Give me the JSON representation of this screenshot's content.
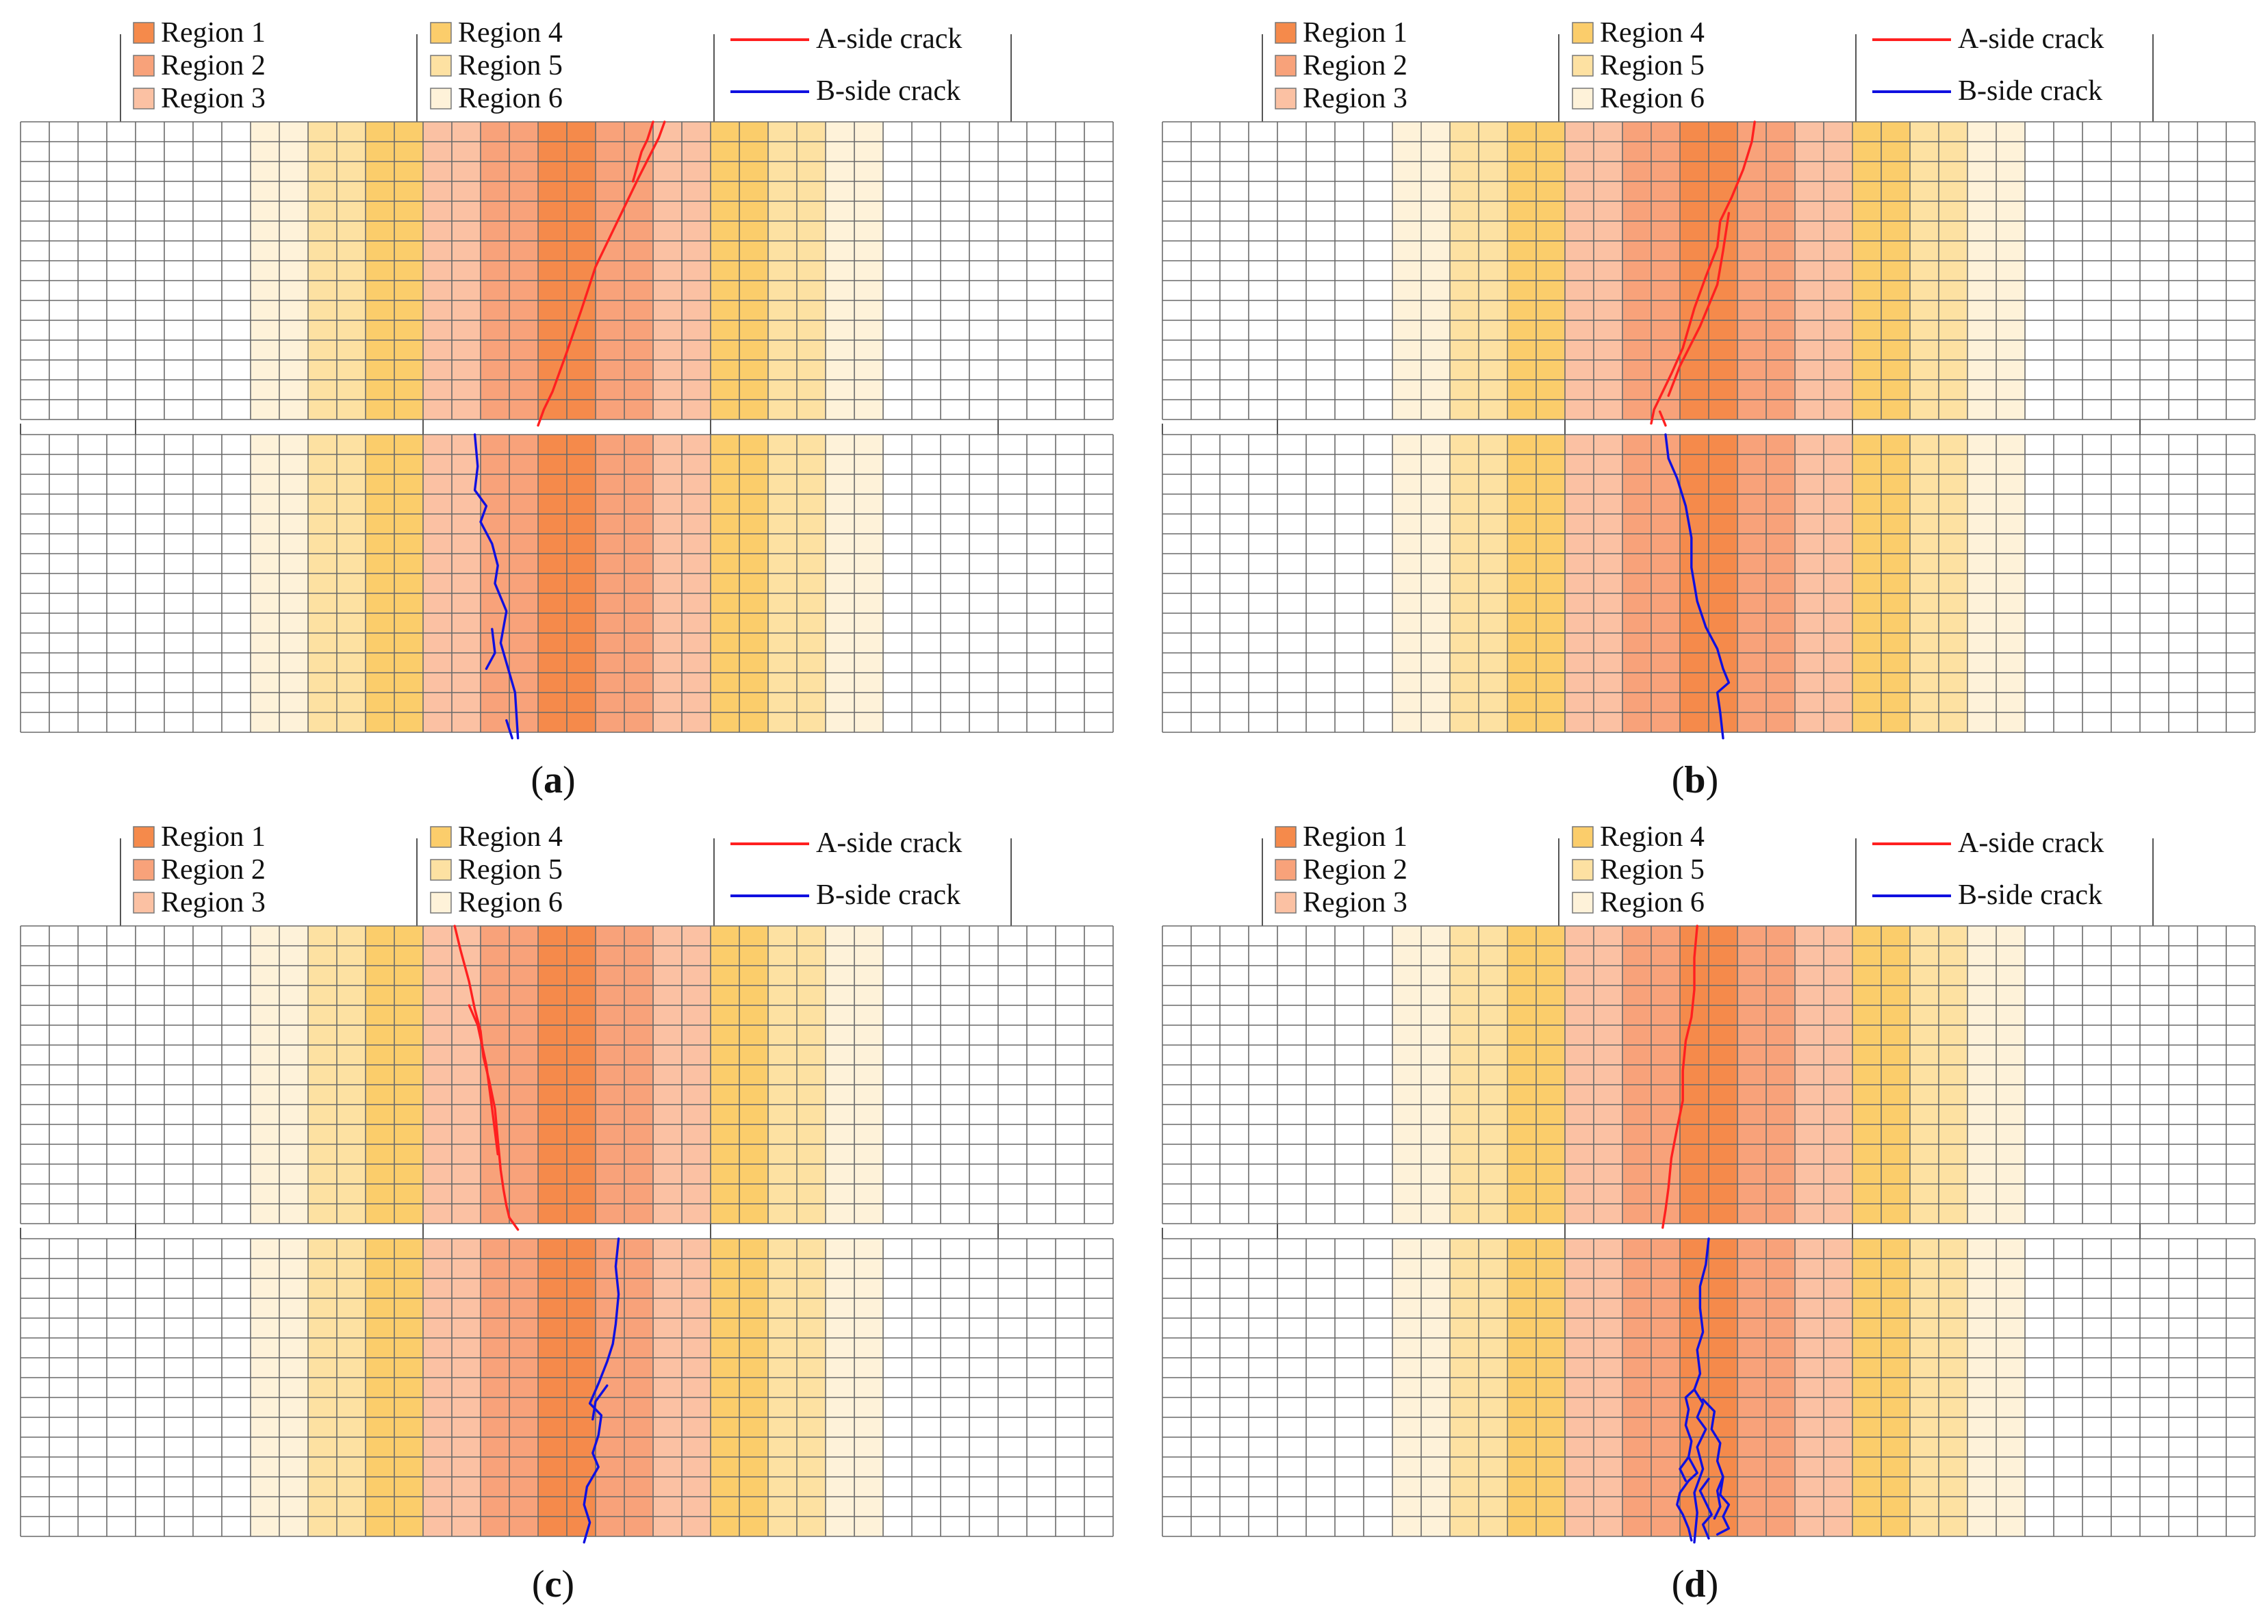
{
  "figure": {
    "region_colors": [
      "#f58a4b",
      "#f8a27a",
      "#fbc1a3",
      "#fbcd6b",
      "#fde1a2",
      "#fef2d9"
    ],
    "column_regions": [
      0,
      0,
      0,
      0,
      0,
      0,
      0,
      0,
      6,
      6,
      5,
      5,
      4,
      4,
      3,
      3,
      2,
      2,
      1,
      1,
      2,
      2,
      3,
      3,
      4,
      4,
      5,
      5,
      6,
      6,
      0,
      0,
      0,
      0,
      0,
      0,
      0,
      0
    ],
    "legend": {
      "regions": [
        "Region 1",
        "Region 2",
        "Region 3",
        "Region 4",
        "Region 5",
        "Region 6"
      ],
      "a_side": "A-side crack",
      "b_side": "B-side crack"
    },
    "crack_colors": {
      "a_side": "#ff2020",
      "b_side": "#1010e0"
    },
    "panels": [
      {
        "label_open": "(",
        "label_letter": "a",
        "label_close": ")",
        "a_crack": [
          [
            [
              22.4,
              0
            ],
            [
              22.2,
              0.8
            ],
            [
              21.5,
              2.8
            ],
            [
              20.7,
              5.2
            ],
            [
              20.0,
              7.3
            ],
            [
              19.5,
              9.5
            ],
            [
              19.0,
              11.6
            ],
            [
              18.5,
              13.6
            ],
            [
              18.2,
              14.5
            ],
            [
              18.0,
              15.3
            ]
          ],
          [
            [
              22.0,
              0
            ],
            [
              21.8,
              0.9
            ],
            [
              21.6,
              1.5
            ],
            [
              21.3,
              3.0
            ]
          ]
        ],
        "b_crack": [
          [
            [
              15.8,
              0
            ],
            [
              15.9,
              1.6
            ],
            [
              15.8,
              2.8
            ],
            [
              16.2,
              3.6
            ],
            [
              16.0,
              4.4
            ],
            [
              16.4,
              5.5
            ],
            [
              16.6,
              6.6
            ],
            [
              16.5,
              7.5
            ],
            [
              16.9,
              8.9
            ],
            [
              16.7,
              10.5
            ],
            [
              16.9,
              11.5
            ],
            [
              17.2,
              13.0
            ],
            [
              17.3,
              15.3
            ]
          ],
          [
            [
              16.4,
              9.8
            ],
            [
              16.5,
              11.0
            ],
            [
              16.2,
              11.8
            ]
          ],
          [
            [
              16.9,
              14.4
            ],
            [
              17.1,
              15.3
            ]
          ]
        ]
      },
      {
        "label_open": "(",
        "label_letter": "b",
        "label_close": ")",
        "a_crack": [
          [
            [
              20.6,
              0
            ],
            [
              20.5,
              1.0
            ],
            [
              20.2,
              2.4
            ],
            [
              19.8,
              3.8
            ],
            [
              19.4,
              5.0
            ],
            [
              19.3,
              6.3
            ],
            [
              18.9,
              7.8
            ],
            [
              18.5,
              9.4
            ],
            [
              18.1,
              11.4
            ],
            [
              17.7,
              12.7
            ],
            [
              17.4,
              13.6
            ],
            [
              17.1,
              14.5
            ],
            [
              17.0,
              15.2
            ]
          ],
          [
            [
              19.7,
              4.6
            ],
            [
              19.5,
              6.5
            ],
            [
              19.3,
              8.2
            ],
            [
              18.7,
              10.3
            ],
            [
              18.0,
              12.3
            ],
            [
              17.6,
              13.8
            ]
          ],
          [
            [
              17.3,
              14.6
            ],
            [
              17.5,
              15.3
            ]
          ]
        ],
        "b_crack": [
          [
            [
              17.5,
              0
            ],
            [
              17.6,
              1.2
            ],
            [
              17.9,
              2.2
            ],
            [
              18.2,
              3.6
            ],
            [
              18.4,
              5.2
            ],
            [
              18.4,
              6.7
            ],
            [
              18.6,
              8.4
            ],
            [
              18.9,
              9.7
            ],
            [
              19.3,
              10.8
            ],
            [
              19.5,
              11.8
            ],
            [
              19.7,
              12.5
            ],
            [
              19.3,
              13.0
            ],
            [
              19.4,
              14.0
            ],
            [
              19.5,
              15.3
            ]
          ]
        ]
      },
      {
        "label_open": "(",
        "label_letter": "c",
        "label_close": ")",
        "a_crack": [
          [
            [
              15.1,
              0
            ],
            [
              15.3,
              1.2
            ],
            [
              15.6,
              2.8
            ],
            [
              15.8,
              4.2
            ],
            [
              16.0,
              5.3
            ],
            [
              16.1,
              6.6
            ],
            [
              16.3,
              7.8
            ],
            [
              16.5,
              9.2
            ],
            [
              16.6,
              10.8
            ],
            [
              16.7,
              12.3
            ],
            [
              16.8,
              13.3
            ],
            [
              16.9,
              14.1
            ],
            [
              17.0,
              14.7
            ],
            [
              17.3,
              15.3
            ]
          ],
          [
            [
              15.6,
              4.0
            ],
            [
              15.9,
              5.0
            ],
            [
              16.2,
              7.0
            ],
            [
              16.4,
              9.2
            ],
            [
              16.6,
              11.5
            ]
          ]
        ],
        "b_crack": [
          [
            [
              20.8,
              0
            ],
            [
              20.7,
              1.4
            ],
            [
              20.8,
              2.8
            ],
            [
              20.7,
              4.3
            ],
            [
              20.6,
              5.3
            ],
            [
              20.4,
              6.2
            ],
            [
              20.1,
              7.3
            ],
            [
              19.8,
              8.3
            ],
            [
              20.2,
              8.9
            ],
            [
              20.1,
              9.9
            ],
            [
              19.9,
              10.8
            ],
            [
              20.1,
              11.5
            ],
            [
              19.7,
              12.5
            ],
            [
              19.6,
              13.4
            ],
            [
              19.8,
              14.3
            ],
            [
              19.6,
              15.3
            ]
          ],
          [
            [
              20.4,
              7.4
            ],
            [
              20.0,
              8.2
            ],
            [
              19.9,
              9.1
            ]
          ]
        ]
      },
      {
        "label_open": "(",
        "label_letter": "d",
        "label_close": ")",
        "a_crack": [
          [
            [
              18.6,
              0
            ],
            [
              18.5,
              1.6
            ],
            [
              18.5,
              3.2
            ],
            [
              18.4,
              4.6
            ],
            [
              18.2,
              5.8
            ],
            [
              18.1,
              7.3
            ],
            [
              18.1,
              8.8
            ],
            [
              17.9,
              10.2
            ],
            [
              17.7,
              11.7
            ],
            [
              17.6,
              13.2
            ],
            [
              17.5,
              14.3
            ],
            [
              17.4,
              15.2
            ]
          ]
        ],
        "b_crack": [
          [
            [
              19.0,
              0
            ],
            [
              18.9,
              1.3
            ],
            [
              18.7,
              2.4
            ],
            [
              18.7,
              3.5
            ],
            [
              18.8,
              4.7
            ],
            [
              18.6,
              5.6
            ],
            [
              18.7,
              6.8
            ],
            [
              18.5,
              7.6
            ],
            [
              18.8,
              8.3
            ],
            [
              18.6,
              9.0
            ],
            [
              18.9,
              9.6
            ],
            [
              18.6,
              10.5
            ],
            [
              18.8,
              11.6
            ],
            [
              18.5,
              12.8
            ],
            [
              18.6,
              13.8
            ],
            [
              18.5,
              15.3
            ]
          ],
          [
            [
              18.5,
              7.6
            ],
            [
              18.2,
              8.0
            ],
            [
              18.3,
              8.6
            ],
            [
              18.2,
              9.4
            ],
            [
              18.4,
              10.2
            ],
            [
              18.3,
              11.0
            ],
            [
              18.6,
              11.8
            ],
            [
              18.3,
              12.2
            ]
          ],
          [
            [
              18.8,
              8.1
            ],
            [
              19.2,
              8.7
            ],
            [
              19.1,
              9.6
            ],
            [
              19.4,
              10.3
            ],
            [
              19.3,
              11.2
            ],
            [
              19.5,
              12.0
            ],
            [
              19.4,
              12.9
            ],
            [
              19.7,
              13.4
            ],
            [
              19.5,
              14.0
            ],
            [
              19.7,
              14.6
            ],
            [
              19.3,
              14.9
            ]
          ],
          [
            [
              18.3,
              12.2
            ],
            [
              18.0,
              12.8
            ],
            [
              17.9,
              13.4
            ],
            [
              18.1,
              13.9
            ],
            [
              18.3,
              14.6
            ],
            [
              18.4,
              15.2
            ]
          ],
          [
            [
              18.3,
              11.0
            ],
            [
              18.0,
              11.6
            ],
            [
              18.2,
              12.2
            ]
          ],
          [
            [
              19.0,
              12.1
            ],
            [
              18.7,
              12.7
            ],
            [
              18.9,
              13.3
            ],
            [
              19.1,
              13.9
            ],
            [
              18.8,
              14.4
            ],
            [
              19.0,
              15.1
            ]
          ],
          [
            [
              19.5,
              12.0
            ],
            [
              19.3,
              12.7
            ],
            [
              19.4,
              13.5
            ],
            [
              19.2,
              14.1
            ]
          ]
        ]
      }
    ]
  }
}
